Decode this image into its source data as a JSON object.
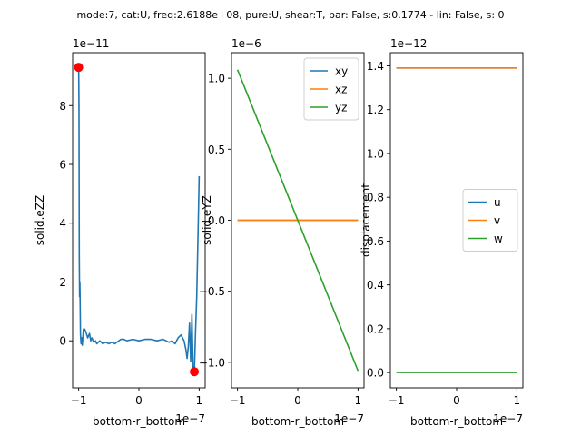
{
  "suptitle": "mode:7, cat:U, freq:2.6188e+08, pure:U, shear:T, par: False, s:0.1774 - lin: False, s: 0",
  "chart_data": [
    {
      "type": "line",
      "xlabel": "bottom-r_bottom",
      "ylabel": "solid.eZZ",
      "x_offset_text": "1e−7",
      "y_offset_text": "1e−11",
      "xlim": [
        -1.1,
        1.1
      ],
      "ylim": [
        -1.6,
        9.8
      ],
      "xticks": [
        -1,
        0,
        1
      ],
      "xtick_labels": [
        "−1",
        "0",
        "1"
      ],
      "yticks": [
        0,
        2,
        4,
        6,
        8
      ],
      "ytick_labels": [
        "0",
        "2",
        "4",
        "6",
        "8"
      ],
      "series": [
        {
          "color": "#1f77b4",
          "x": [
            -1.0,
            -0.995,
            -0.99,
            -0.985,
            -0.98,
            -0.975,
            -0.97,
            -0.96,
            -0.95,
            -0.94,
            -0.92,
            -0.9,
            -0.88,
            -0.85,
            -0.82,
            -0.8,
            -0.78,
            -0.75,
            -0.72,
            -0.7,
            -0.65,
            -0.6,
            -0.55,
            -0.5,
            -0.45,
            -0.4,
            -0.3,
            -0.25,
            -0.2,
            -0.1,
            0.0,
            0.1,
            0.2,
            0.3,
            0.4,
            0.45,
            0.5,
            0.55,
            0.6,
            0.65,
            0.7,
            0.75,
            0.78,
            0.8,
            0.82,
            0.84,
            0.86,
            0.88,
            0.9,
            0.92,
            0.94,
            0.96,
            0.97,
            0.98,
            0.99,
            1.0
          ],
          "values": [
            9.3,
            8.0,
            2.9,
            1.5,
            2.0,
            1.2,
            0.2,
            -0.1,
            0.1,
            -0.15,
            0.4,
            0.4,
            0.3,
            0.1,
            0.25,
            0.0,
            0.1,
            -0.05,
            0.0,
            -0.1,
            0.0,
            -0.1,
            -0.05,
            -0.1,
            -0.05,
            -0.1,
            0.05,
            0.05,
            0.0,
            0.05,
            0.0,
            0.05,
            0.05,
            0.0,
            0.05,
            0.0,
            -0.05,
            0.0,
            -0.1,
            0.1,
            0.2,
            0.0,
            -0.3,
            -0.6,
            -0.2,
            0.6,
            -0.7,
            0.9,
            -1.0,
            -1.1,
            0.3,
            1.5,
            2.5,
            3.5,
            4.5,
            5.6
          ]
        }
      ],
      "markers": [
        {
          "x": -1.0,
          "y": 9.3,
          "color": "#ff0000"
        },
        {
          "x": 0.92,
          "y": -1.05,
          "color": "#ff0000"
        }
      ]
    },
    {
      "type": "line",
      "xlabel": "bottom-r_bottom",
      "ylabel": "solid.eYZ",
      "x_offset_text": "1e−7",
      "y_offset_text": "1e−6",
      "xlim": [
        -1.1,
        1.1
      ],
      "ylim": [
        -1.18,
        1.18
      ],
      "xticks": [
        -1,
        0,
        1
      ],
      "xtick_labels": [
        "−1",
        "0",
        "1"
      ],
      "yticks": [
        -1.0,
        -0.5,
        0.0,
        0.5,
        1.0
      ],
      "ytick_labels": [
        "−1.0",
        "−0.5",
        "0.0",
        "0.5",
        "1.0"
      ],
      "legend_position": "top-right",
      "series": [
        {
          "name": "xy",
          "color": "#1f77b4",
          "x": [
            -1,
            1
          ],
          "values": [
            0.0,
            0.0
          ]
        },
        {
          "name": "xz",
          "color": "#ff7f0e",
          "x": [
            -1,
            1
          ],
          "values": [
            0.0,
            0.0
          ]
        },
        {
          "name": "yz",
          "color": "#2ca02c",
          "x": [
            -1,
            1
          ],
          "values": [
            1.06,
            -1.06
          ]
        }
      ]
    },
    {
      "type": "line",
      "xlabel": "bottom-r_bottom",
      "ylabel": "displacement",
      "x_offset_text": "1e−7",
      "y_offset_text": "1e−12",
      "xlim": [
        -1.1,
        1.1
      ],
      "ylim": [
        -0.07,
        1.46
      ],
      "xticks": [
        -1,
        0,
        1
      ],
      "xtick_labels": [
        "−1",
        "0",
        "1"
      ],
      "yticks": [
        0.0,
        0.2,
        0.4,
        0.6,
        0.8,
        1.0,
        1.2,
        1.4
      ],
      "ytick_labels": [
        "0.0",
        "0.2",
        "0.4",
        "0.6",
        "0.8",
        "1.0",
        "1.2",
        "1.4"
      ],
      "legend_position": "center-right",
      "series": [
        {
          "name": "u",
          "color": "#1f77b4",
          "x": [
            -1,
            1
          ],
          "values": [
            1.39,
            1.39
          ]
        },
        {
          "name": "v",
          "color": "#ff7f0e",
          "x": [
            -1,
            1
          ],
          "values": [
            1.39,
            1.39
          ]
        },
        {
          "name": "w",
          "color": "#2ca02c",
          "x": [
            -1,
            1
          ],
          "values": [
            0.0,
            0.0
          ]
        }
      ]
    }
  ]
}
